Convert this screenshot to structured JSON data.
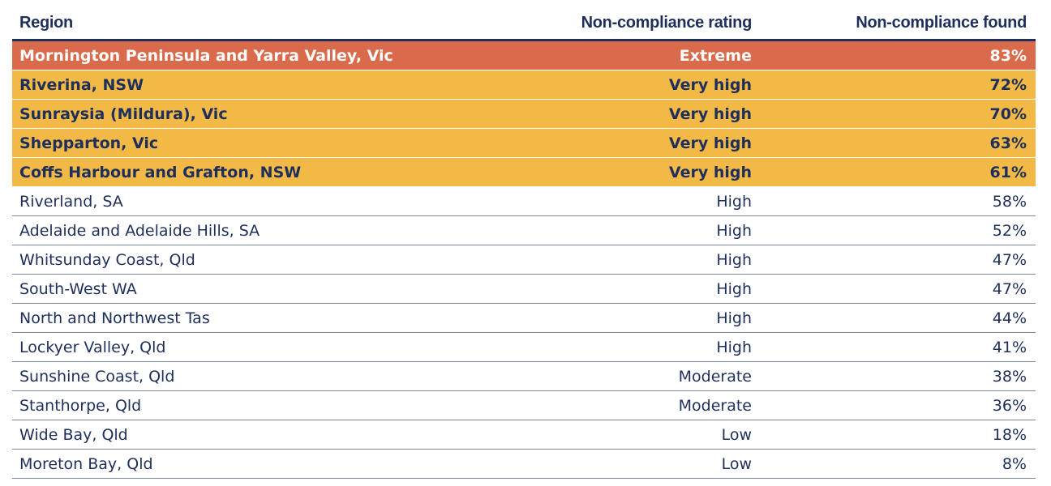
{
  "table": {
    "headers": {
      "region": "Region",
      "rating": "Non-compliance rating",
      "found": "Non-compliance found"
    },
    "rows": [
      {
        "region": "Mornington Peninsula and Yarra Valley, Vic",
        "rating": "Extreme",
        "found": "83%",
        "level": "extreme"
      },
      {
        "region": "Riverina, NSW",
        "rating": "Very high",
        "found": "72%",
        "level": "veryhigh"
      },
      {
        "region": "Sunraysia (Mildura), Vic",
        "rating": "Very high",
        "found": "70%",
        "level": "veryhigh"
      },
      {
        "region": "Shepparton, Vic",
        "rating": "Very high",
        "found": "63%",
        "level": "veryhigh"
      },
      {
        "region": "Coffs Harbour and Grafton, NSW",
        "rating": "Very high",
        "found": "61%",
        "level": "veryhigh"
      },
      {
        "region": "Riverland, SA",
        "rating": "High",
        "found": "58%",
        "level": "high"
      },
      {
        "region": "Adelaide and Adelaide Hills, SA",
        "rating": "High",
        "found": "52%",
        "level": "high"
      },
      {
        "region": "Whitsunday Coast, Qld",
        "rating": "High",
        "found": "47%",
        "level": "high"
      },
      {
        "region": "South-West WA",
        "rating": "High",
        "found": "47%",
        "level": "high"
      },
      {
        "region": "North and Northwest Tas",
        "rating": "High",
        "found": "44%",
        "level": "high"
      },
      {
        "region": "Lockyer Valley, Qld",
        "rating": "High",
        "found": "41%",
        "level": "high"
      },
      {
        "region": "Sunshine Coast, Qld",
        "rating": "Moderate",
        "found": "38%",
        "level": "moderate"
      },
      {
        "region": "Stanthorpe, Qld",
        "rating": "Moderate",
        "found": "36%",
        "level": "moderate"
      },
      {
        "region": "Wide Bay, Qld",
        "rating": "Low",
        "found": "18%",
        "level": "low"
      },
      {
        "region": "Moreton Bay, Qld",
        "rating": "Low",
        "found": "8%",
        "level": "low"
      }
    ]
  },
  "colors": {
    "text": "#1f2f5c",
    "extreme": "#d96a4b",
    "very_high": "#f3b946",
    "rule": "#7a869f"
  }
}
